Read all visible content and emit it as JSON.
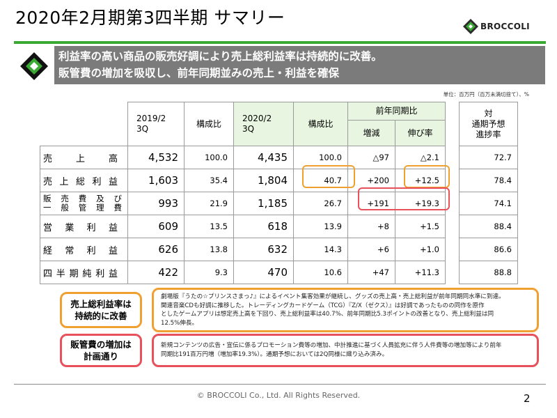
{
  "title": "2020年2月期第3四半期 サマリー",
  "logo": {
    "text": "BROCCOLI",
    "icon": "diamond-logo-icon",
    "color": "#3aaa35"
  },
  "banner": {
    "line1": "利益率の高い商品の販売好調により売上総利益率は持続的に改善。",
    "line2": "販管費の増加を吸収し、前年同期並みの売上・利益を確保",
    "background": "#7b7b7b"
  },
  "unit_note": "単位：百万円（百万未満切捨て）、%",
  "table": {
    "headers": {
      "prev_period": [
        "2019/2",
        "3Q"
      ],
      "composition": "構成比",
      "curr_period": [
        "2020/2",
        "3Q"
      ],
      "composition2": "構成比",
      "yoy_group": "前年同期比",
      "change": "増減",
      "growth": "伸び率",
      "progress": [
        "対",
        "通期予想",
        "進捗率"
      ]
    },
    "rows": [
      {
        "label": "売上高",
        "label_chars": [
          "売",
          "上",
          "高"
        ],
        "prev": "4,532",
        "prev_ratio": "100.0",
        "curr": "4,435",
        "curr_ratio": "100.0",
        "change": "△97",
        "growth": "△2.1",
        "progress": "72.7"
      },
      {
        "label": "売上総利益",
        "label_chars": [
          "売",
          "上",
          "総",
          "利",
          "益"
        ],
        "prev": "1,603",
        "prev_ratio": "35.4",
        "curr": "1,804",
        "curr_ratio": "40.7",
        "change": "+200",
        "growth": "+12.5",
        "progress": "78.4"
      },
      {
        "label": "販売費及び一般管理費",
        "label_lines": [
          [
            "販",
            "売",
            "費",
            "及",
            "び"
          ],
          [
            "一",
            "般",
            "管",
            "理",
            "費"
          ]
        ],
        "prev": "993",
        "prev_ratio": "21.9",
        "curr": "1,185",
        "curr_ratio": "26.7",
        "change": "+191",
        "growth": "+19.3",
        "progress": "74.1"
      },
      {
        "label": "営業利益",
        "label_chars": [
          "営",
          "業",
          "利",
          "益"
        ],
        "prev": "609",
        "prev_ratio": "13.5",
        "curr": "618",
        "curr_ratio": "13.9",
        "change": "+8",
        "growth": "+1.5",
        "progress": "88.4"
      },
      {
        "label": "経常利益",
        "label_chars": [
          "経",
          "常",
          "利",
          "益"
        ],
        "prev": "626",
        "prev_ratio": "13.8",
        "curr": "632",
        "curr_ratio": "14.3",
        "change": "+6",
        "growth": "+1.0",
        "progress": "86.6"
      },
      {
        "label": "四半期純利益",
        "label_chars": [
          "四",
          "半",
          "期",
          "純",
          "利",
          "益"
        ],
        "prev": "422",
        "prev_ratio": "9.3",
        "curr": "470",
        "curr_ratio": "10.6",
        "change": "+47",
        "growth": "+11.3",
        "progress": "88.8"
      }
    ],
    "highlight_orange": "#f0a030",
    "highlight_red": "#e8505b",
    "current_column_fill": "#e8f5e0"
  },
  "notes": [
    {
      "label_lines": [
        "売上総利益率は",
        "持続的に改善"
      ],
      "text_lines": [
        "劇場版『うたの☆プリンスさまっ♪』によるイベント集客効果が継続し、グッズの売上高・売上総利益が前年同期同水準に到達。",
        "関連音楽CDも好調に推移した。トレーディングカードゲーム（TCG）『Z/X（ゼクス）』は好調であったものの同作を原作",
        "としたゲームアプリは想定売上高を下回り、売上総利益率は40.7%、前年同期比5.3ポイントの改善となり、売上総利益は同",
        "12.5%伸長。"
      ]
    },
    {
      "label_lines": [
        "販管費の増加は",
        "計画通り"
      ],
      "text_lines": [
        "新規コンテンツの広告・宣伝に係るプロモーション費等の増加、中計推進に基づく人員拡充に伴う人件費等の増加等により前年",
        "同期比191百万円増（増加率19.3%）。通期予想においては2Q同様に織り込み済み。"
      ]
    }
  ],
  "footer": {
    "copyright": "© BROCCOLI Co., Ltd. All Rights Reserved.",
    "page": "2"
  }
}
